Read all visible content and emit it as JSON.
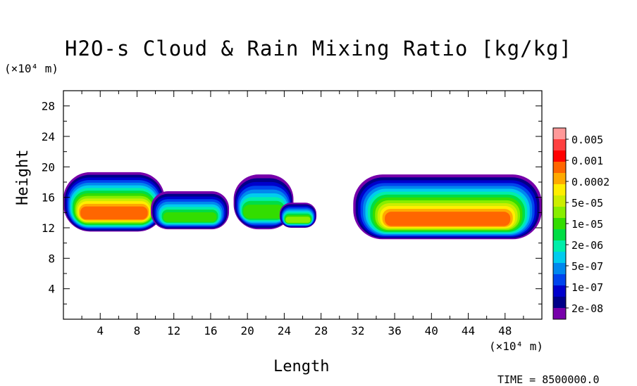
{
  "chart_data": {
    "type": "heatmap",
    "title": "H2O-s Cloud & Rain Mixing Ratio [kg/kg]",
    "xlabel": "Length",
    "ylabel": "Height",
    "x_unit": "(×10⁴ m)",
    "y_unit": "(×10⁴ m)",
    "xlim": [
      0,
      52
    ],
    "ylim": [
      0,
      30
    ],
    "x_ticks": [
      4,
      8,
      12,
      16,
      20,
      24,
      28,
      32,
      36,
      40,
      44,
      48
    ],
    "y_ticks": [
      4,
      8,
      12,
      16,
      20,
      24,
      28
    ],
    "timestamp": "TIME = 8500000.0",
    "colorbar": {
      "labels": [
        "0.005",
        "0.001",
        "0.0002",
        "5e-05",
        "1e-05",
        "2e-06",
        "5e-07",
        "1e-07",
        "2e-08"
      ],
      "colors": [
        "#ff9999",
        "#ff4040",
        "#ff0000",
        "#ff6600",
        "#ffaa00",
        "#ffee00",
        "#ccee00",
        "#88ee00",
        "#33dd00",
        "#00dd44",
        "#00eeaa",
        "#00ccee",
        "#0088ee",
        "#0044ee",
        "#0000cc",
        "#000088",
        "#7700aa"
      ]
    },
    "cloud_regions": [
      {
        "x0": 0,
        "x1": 11,
        "ybot": 11.5,
        "ytop": 19.3,
        "level": 14
      },
      {
        "x0": 9.5,
        "x1": 18,
        "ybot": 11.8,
        "ytop": 16.8,
        "level": 9
      },
      {
        "x0": 18.5,
        "x1": 25,
        "ybot": 11.8,
        "ytop": 19.0,
        "level": 9
      },
      {
        "x0": 23.5,
        "x1": 27.5,
        "ybot": 12.0,
        "ytop": 15.3,
        "level": 10
      },
      {
        "x0": 31.5,
        "x1": 52,
        "ybot": 10.5,
        "ytop": 19.0,
        "level": 14
      }
    ]
  }
}
